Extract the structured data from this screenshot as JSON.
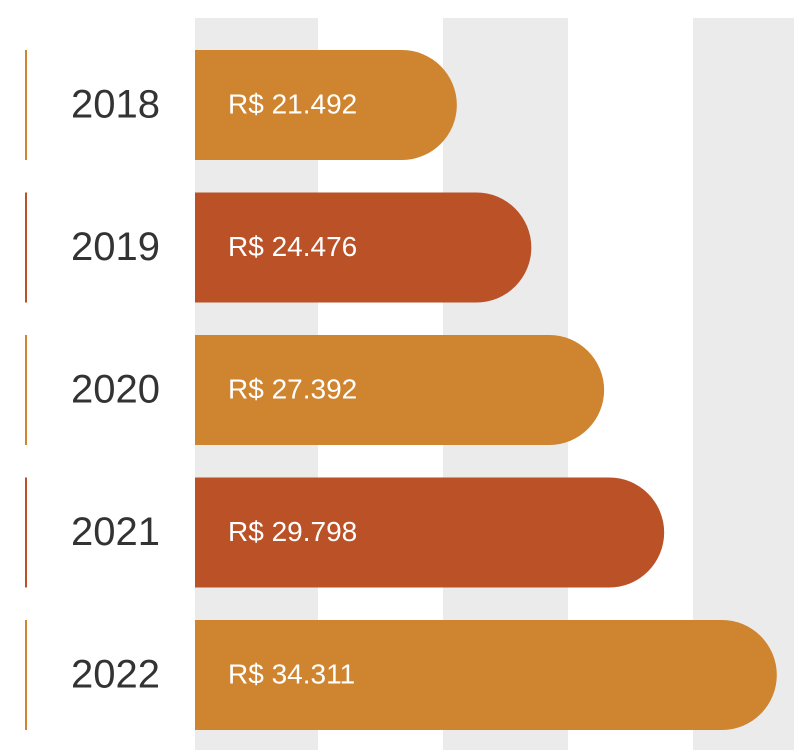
{
  "chart_data": {
    "type": "bar",
    "orientation": "horizontal",
    "categories": [
      "2018",
      "2019",
      "2020",
      "2021",
      "2022"
    ],
    "values": [
      21492,
      24476,
      27392,
      29798,
      34311
    ],
    "value_labels": [
      "R$ 21.492",
      "R$ 24.476",
      "R$ 27.392",
      "R$ 29.798",
      "R$ 34.311"
    ],
    "colors": [
      "#cf842f",
      "#bb5126",
      "#cf842f",
      "#bb5126",
      "#cf842f"
    ],
    "xlim": [
      11000,
      35000
    ]
  }
}
